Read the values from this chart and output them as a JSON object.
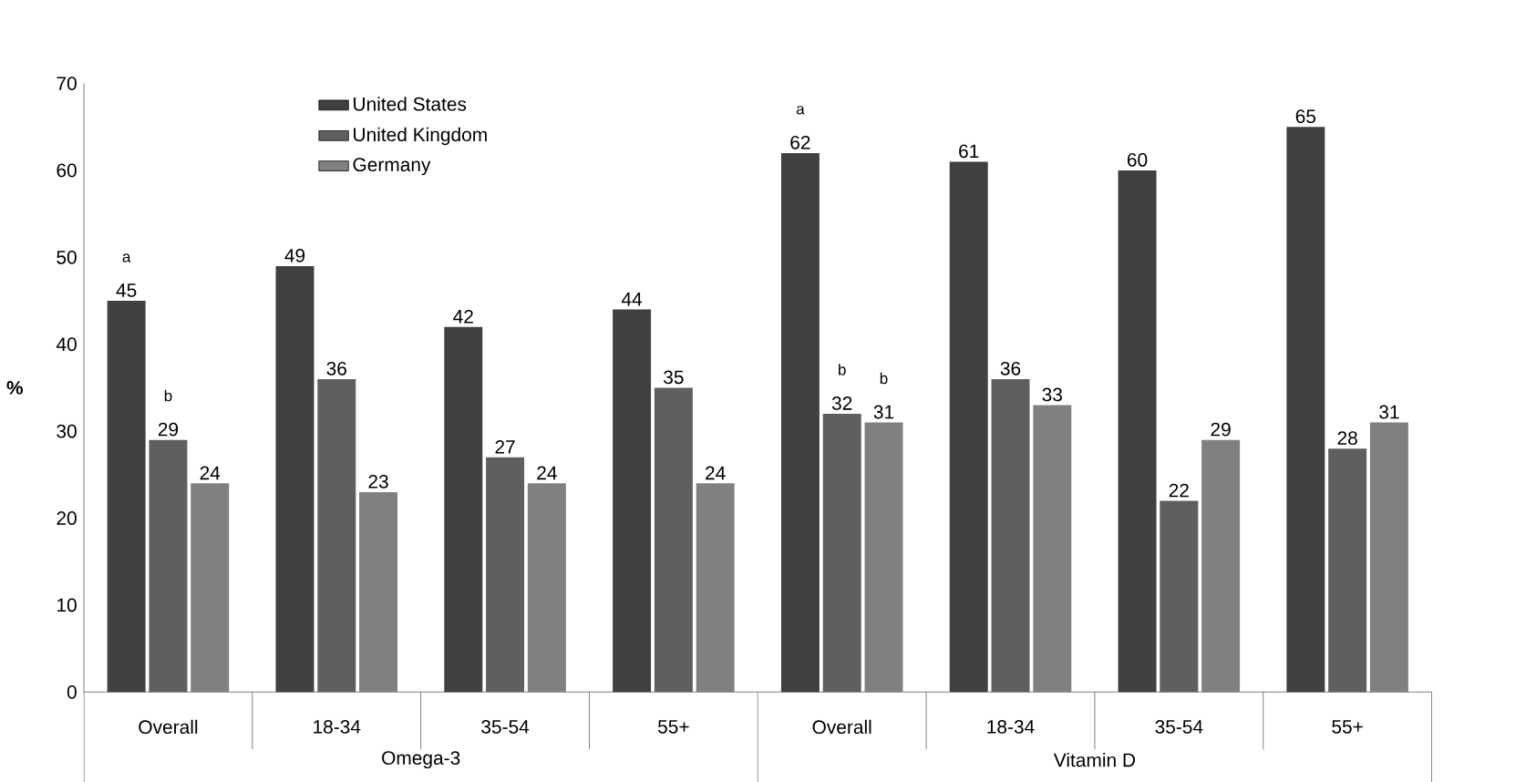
{
  "chart_data": {
    "type": "bar",
    "ylabel": "%",
    "categories": [
      "Overall",
      "18-34",
      "35-54",
      "55+",
      "Overall",
      "18-34",
      "35-54",
      "55+"
    ],
    "series": [
      {
        "name": "United States",
        "color": "#404040",
        "values": [
          45,
          49,
          42,
          44,
          62,
          61,
          60,
          65
        ]
      },
      {
        "name": "United Kingdom",
        "color": "#5f5f5f",
        "values": [
          29,
          36,
          27,
          35,
          32,
          36,
          22,
          28
        ]
      },
      {
        "name": "Germany",
        "color": "#808080",
        "values": [
          24,
          23,
          24,
          24,
          31,
          33,
          29,
          31
        ]
      }
    ],
    "ylim": [
      0,
      70
    ],
    "yticks": [
      0,
      10,
      20,
      30,
      40,
      50,
      60,
      70
    ],
    "data_labels": true,
    "legend": "top left",
    "grid": false,
    "annotations": [
      "a",
      "b",
      "a",
      "b",
      "b",
      "Omega-3",
      "Vitamin D"
    ]
  }
}
